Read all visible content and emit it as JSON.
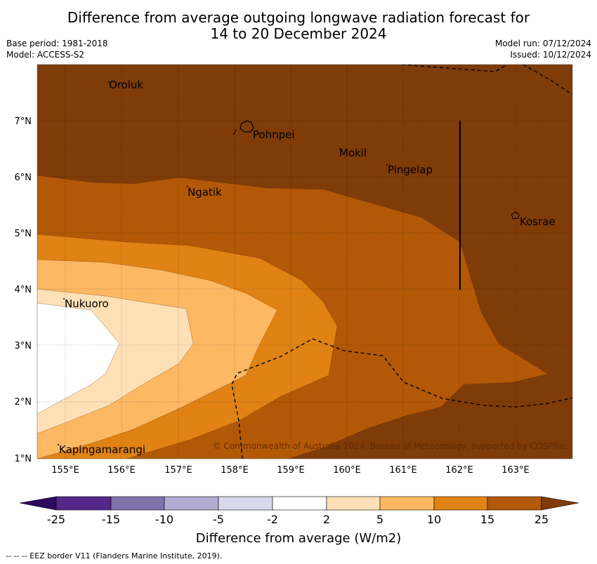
{
  "title_line1": "Difference from average outgoing longwave radiation forecast for",
  "title_line2": "14 to 20 December 2024",
  "base_period": "Base period: 1981-2018",
  "model": "Model: ACCESS-S2",
  "model_run": "Model run: 07/12/2024",
  "issued": "Issued: 10/12/2024",
  "lat_labels": [
    "1°N",
    "2°N",
    "3°N",
    "4°N",
    "5°N",
    "6°N",
    "7°N"
  ],
  "lon_labels": [
    "155°E",
    "156°E",
    "157°E",
    "158°E",
    "159°E",
    "160°E",
    "161°E",
    "162°E",
    "163°E"
  ],
  "places": [
    "Oroluk",
    "Pohnpei",
    "Mokil",
    "Pingelap",
    "Ngatik",
    "Kosrae",
    "Nukuoro",
    "Kapingamarangi"
  ],
  "copyright": "© Commonwealth of Australia 2024, Bureau of Meteorology, supported by COSPPac",
  "colorbar": {
    "ticks": [
      "-25",
      "-15",
      "-10",
      "-5",
      "-2",
      "2",
      "5",
      "10",
      "15",
      "25"
    ],
    "colors": [
      "#2d0a5e",
      "#542788",
      "#8073ac",
      "#b2abd2",
      "#d8daeb",
      "#ffffff",
      "#fee0b6",
      "#fdb863",
      "#e08214",
      "#b35806",
      "#7f3b08"
    ],
    "label": "Difference from average (W/m2)"
  },
  "footer": "--  --  -- EEZ border V11 (Flanders Marine Institute, 2019)."
}
